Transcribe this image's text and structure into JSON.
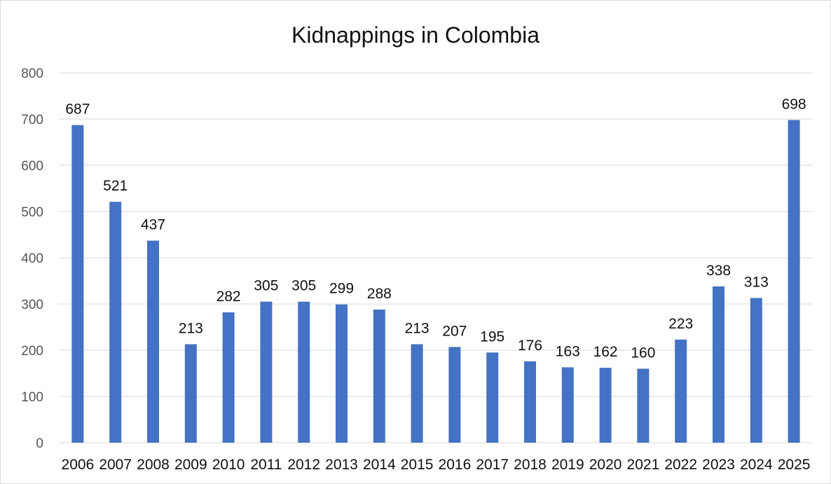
{
  "chart_data": {
    "type": "bar",
    "title": "Kidnappings in Colombia",
    "xlabel": "",
    "ylabel": "",
    "categories": [
      "2006",
      "2007",
      "2008",
      "2009",
      "2010",
      "2011",
      "2012",
      "2013",
      "2014",
      "2015",
      "2016",
      "2017",
      "2018",
      "2019",
      "2020",
      "2021",
      "2022",
      "2023",
      "2024",
      "2025"
    ],
    "values": [
      687,
      521,
      437,
      213,
      282,
      305,
      305,
      299,
      288,
      213,
      207,
      195,
      176,
      163,
      162,
      160,
      223,
      338,
      313,
      698
    ],
    "ylim": [
      0,
      800
    ],
    "yticks": [
      0,
      100,
      200,
      300,
      400,
      500,
      600,
      700,
      800
    ],
    "grid": true,
    "legend": "none",
    "bar_color": "#4472c4",
    "data_labels": true
  }
}
